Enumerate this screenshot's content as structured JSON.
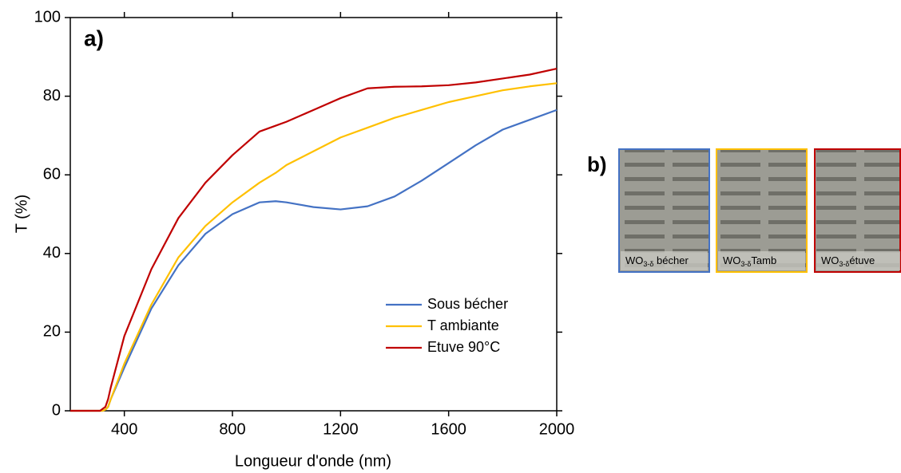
{
  "chart_data": {
    "type": "line",
    "panel_label": "a)",
    "x_label": "Longueur d'onde (nm)",
    "y_label": "T (%)",
    "x": [
      200,
      310,
      320,
      330,
      340,
      350,
      400,
      500,
      600,
      700,
      800,
      900,
      960,
      1000,
      1100,
      1200,
      1300,
      1400,
      1500,
      1600,
      1700,
      1800,
      1900,
      2000
    ],
    "series": [
      {
        "name": "Sous bécher",
        "color": "#4472c4",
        "values": [
          0,
          0,
          0,
          0.3,
          1,
          3,
          11,
          26,
          37,
          45,
          50,
          53,
          53.3,
          53,
          51.8,
          51.2,
          52,
          54.5,
          58.5,
          63,
          67.5,
          71.5,
          74,
          76.5
        ]
      },
      {
        "name": "T ambiante",
        "color": "#ffc000",
        "values": [
          0,
          0,
          0,
          0.3,
          1,
          3,
          12,
          27,
          39,
          47,
          53,
          58,
          60.5,
          62.5,
          66,
          69.5,
          72,
          74.5,
          76.5,
          78.5,
          80,
          81.5,
          82.5,
          83.3
        ]
      },
      {
        "name": "Etuve 90°C",
        "color": "#c00000",
        "values": [
          0,
          0,
          0.5,
          1,
          3,
          6,
          19,
          36,
          49,
          58,
          65,
          71,
          72.5,
          73.5,
          76.5,
          79.5,
          82,
          82.4,
          82.5,
          82.8,
          83.5,
          84.5,
          85.5,
          87
        ]
      }
    ],
    "xlim": [
      200,
      2000
    ],
    "xticks": [
      400,
      800,
      1200,
      1600,
      2000
    ],
    "ylim": [
      0,
      100
    ],
    "yticks": [
      0,
      20,
      40,
      60,
      80,
      100
    ],
    "legend": "lower right"
  },
  "panel_b": {
    "label": "b)",
    "photos": [
      {
        "formula": "WO",
        "subscript": "3-δ",
        "caption": " bécher",
        "border": "#4472c4"
      },
      {
        "formula": "WO",
        "subscript": "3-δ",
        "caption": "Tamb",
        "border": "#ffc000"
      },
      {
        "formula": "WO",
        "subscript": "3-δ",
        "caption": "étuve",
        "border": "#c00000"
      }
    ]
  }
}
